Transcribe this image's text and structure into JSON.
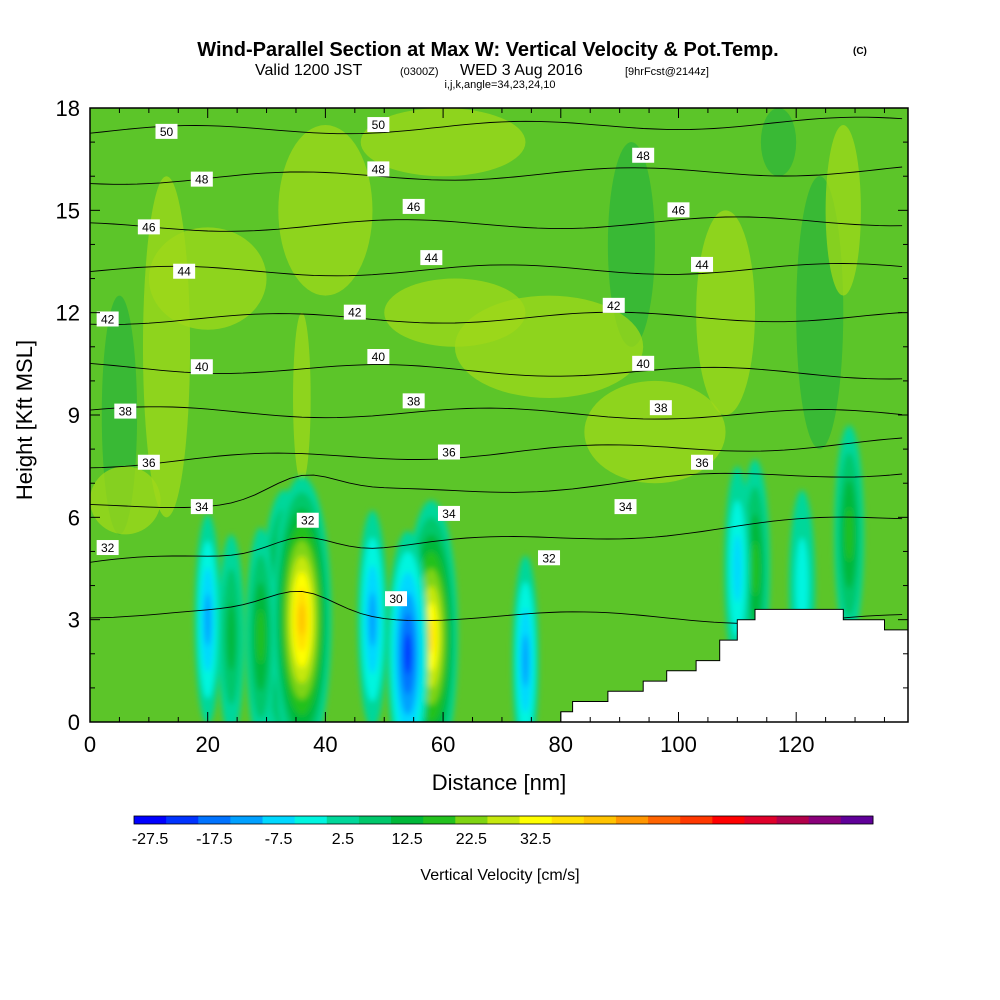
{
  "title": {
    "main": "Wind-Parallel Section at Max W: Vertical Velocity & Pot.Temp.",
    "main_suffix": "(C)",
    "valid_prefix": "Valid 1200 JST",
    "valid_utc": "(0300Z)",
    "valid_date": "WED 3 Aug 2016",
    "forecast": "[9hrFcst@2144z]",
    "info": "i,j,k,angle=34,23,24,10"
  },
  "colorbar": {
    "title": "Vertical Velocity [cm/s]",
    "tick_labels": [
      "-27.5",
      "-17.5",
      "-7.5",
      "2.5",
      "12.5",
      "22.5",
      "32.5"
    ],
    "colors": [
      "#0000ff",
      "#0033ff",
      "#0073ff",
      "#00a0ff",
      "#00d8ff",
      "#00f5e0",
      "#00d79a",
      "#00c76b",
      "#00b83a",
      "#23c11e",
      "#7fd412",
      "#c6e80e",
      "#ffff00",
      "#ffe000",
      "#ffc300",
      "#ff9600",
      "#ff6400",
      "#ff3800",
      "#ff0000",
      "#e0002a",
      "#b2004a",
      "#8a007a",
      "#600099"
    ]
  },
  "chart_data": {
    "type": "heatmap",
    "title": "Wind-Parallel Section at Max W: Vertical Velocity & Pot.Temp.",
    "xlabel": "Distance [nm]",
    "ylabel": "Height [Kft MSL]",
    "xlim": [
      0,
      139
    ],
    "ylim": [
      0,
      18
    ],
    "x_ticks": [
      0,
      20,
      40,
      60,
      80,
      100,
      120
    ],
    "y_ticks": [
      0,
      3,
      6,
      9,
      12,
      15,
      18
    ],
    "colorscale_units": "cm/s",
    "vertical_velocity_cells": [
      {
        "x": 33,
        "z": 3.0,
        "w": 30
      },
      {
        "x": 36,
        "z": 3.0,
        "w": 40
      },
      {
        "x": 29,
        "z": 2.5,
        "w": 15
      },
      {
        "x": 24,
        "z": 2.5,
        "w": 10
      },
      {
        "x": 58,
        "z": 2.5,
        "w": 35
      },
      {
        "x": 113,
        "z": 4.5,
        "w": 15
      },
      {
        "x": 129,
        "z": 5.5,
        "w": 15
      },
      {
        "x": 54,
        "z": 2.0,
        "w": -25
      },
      {
        "x": 48,
        "z": 3.0,
        "w": -15
      },
      {
        "x": 20,
        "z": 3.0,
        "w": -12
      },
      {
        "x": 74,
        "z": 1.8,
        "w": -12
      },
      {
        "x": 110,
        "z": 4.5,
        "w": -10
      },
      {
        "x": 121,
        "z": 4.0,
        "w": -5
      }
    ],
    "potential_temperature_isotherms": [
      {
        "theta": 30,
        "z_at_x0": 3.2,
        "z_at_x140": 3.0
      },
      {
        "theta": 32,
        "z_at_x0": 4.6,
        "z_at_x140": 6.0
      },
      {
        "theta": 34,
        "z_at_x0": 6.3,
        "z_at_x140": 7.4
      },
      {
        "theta": 36,
        "z_at_x0": 7.6,
        "z_at_x140": 8.2
      },
      {
        "theta": 38,
        "z_at_x0": 9.1,
        "z_at_x140": 9.0
      },
      {
        "theta": 40,
        "z_at_x0": 10.4,
        "z_at_x140": 10.2
      },
      {
        "theta": 42,
        "z_at_x0": 11.8,
        "z_at_x140": 11.9
      },
      {
        "theta": 44,
        "z_at_x0": 13.2,
        "z_at_x140": 13.3
      },
      {
        "theta": 46,
        "z_at_x0": 14.5,
        "z_at_x140": 14.7
      },
      {
        "theta": 48,
        "z_at_x0": 15.9,
        "z_at_x140": 16.2
      },
      {
        "theta": 50,
        "z_at_x0": 17.3,
        "z_at_x140": 17.6
      }
    ],
    "isotherm_labels": [
      {
        "text": "50",
        "x": 13,
        "z": 17.3
      },
      {
        "text": "50",
        "x": 49,
        "z": 17.5
      },
      {
        "text": "48",
        "x": 19,
        "z": 15.9
      },
      {
        "text": "48",
        "x": 49,
        "z": 16.2
      },
      {
        "text": "48",
        "x": 94,
        "z": 16.6
      },
      {
        "text": "46",
        "x": 10,
        "z": 14.5
      },
      {
        "text": "46",
        "x": 55,
        "z": 15.1
      },
      {
        "text": "46",
        "x": 100,
        "z": 15.0
      },
      {
        "text": "44",
        "x": 16,
        "z": 13.2
      },
      {
        "text": "44",
        "x": 58,
        "z": 13.6
      },
      {
        "text": "44",
        "x": 104,
        "z": 13.4
      },
      {
        "text": "42",
        "x": 3,
        "z": 11.8
      },
      {
        "text": "42",
        "x": 45,
        "z": 12.0
      },
      {
        "text": "42",
        "x": 89,
        "z": 12.2
      },
      {
        "text": "40",
        "x": 19,
        "z": 10.4
      },
      {
        "text": "40",
        "x": 49,
        "z": 10.7
      },
      {
        "text": "40",
        "x": 94,
        "z": 10.5
      },
      {
        "text": "38",
        "x": 6,
        "z": 9.1
      },
      {
        "text": "38",
        "x": 55,
        "z": 9.4
      },
      {
        "text": "38",
        "x": 97,
        "z": 9.2
      },
      {
        "text": "36",
        "x": 10,
        "z": 7.6
      },
      {
        "text": "36",
        "x": 61,
        "z": 7.9
      },
      {
        "text": "36",
        "x": 104,
        "z": 7.6
      },
      {
        "text": "34",
        "x": 19,
        "z": 6.3
      },
      {
        "text": "34",
        "x": 61,
        "z": 6.1
      },
      {
        "text": "34",
        "x": 91,
        "z": 6.3
      },
      {
        "text": "32",
        "x": 3,
        "z": 5.1
      },
      {
        "text": "32",
        "x": 37,
        "z": 5.9
      },
      {
        "text": "32",
        "x": 78,
        "z": 4.8
      },
      {
        "text": "30",
        "x": 52,
        "z": 3.6
      }
    ],
    "terrain": [
      [
        80,
        0.3
      ],
      [
        82,
        0.3
      ],
      [
        82,
        0.6
      ],
      [
        88,
        0.6
      ],
      [
        88,
        0.9
      ],
      [
        94,
        0.9
      ],
      [
        94,
        1.2
      ],
      [
        98,
        1.2
      ],
      [
        98,
        1.5
      ],
      [
        103,
        1.5
      ],
      [
        103,
        1.8
      ],
      [
        107,
        1.8
      ],
      [
        107,
        2.4
      ],
      [
        110,
        2.4
      ],
      [
        110,
        3.0
      ],
      [
        113,
        3.0
      ],
      [
        113,
        3.3
      ],
      [
        128,
        3.3
      ],
      [
        128,
        3.0
      ],
      [
        135,
        3.0
      ],
      [
        135,
        2.7
      ],
      [
        139,
        2.7
      ]
    ]
  }
}
